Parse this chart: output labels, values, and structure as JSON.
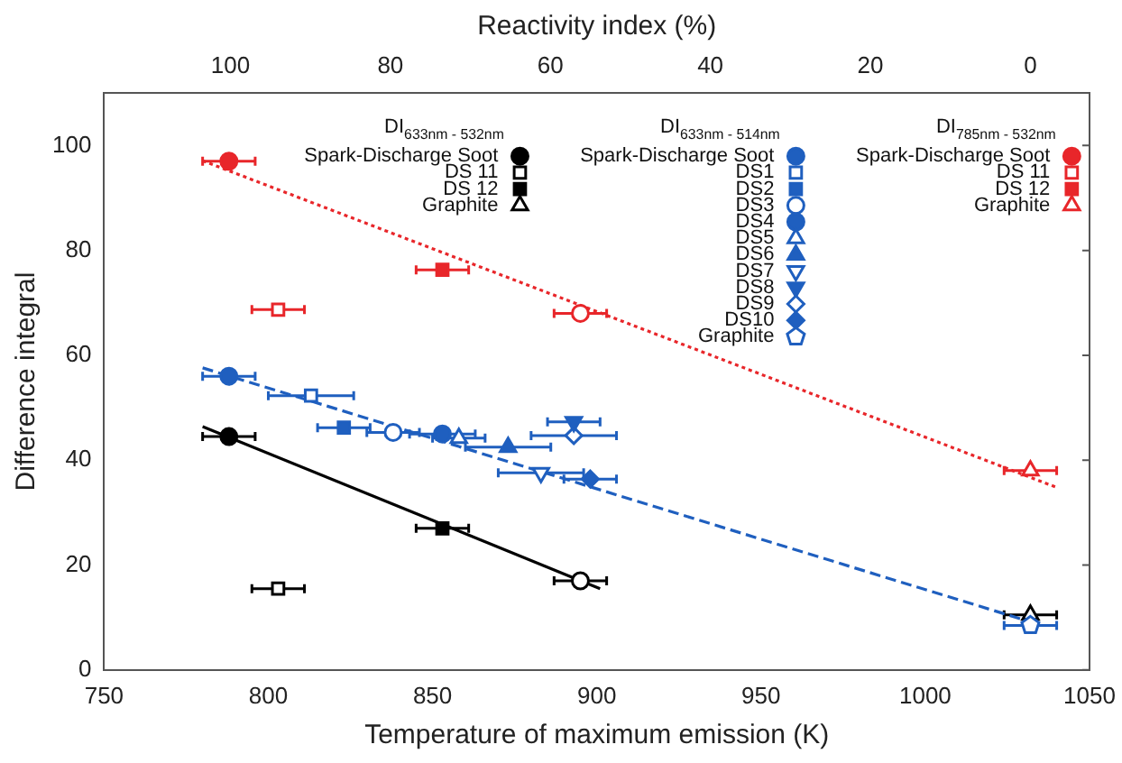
{
  "chart_data": {
    "type": "scatter",
    "xlabel": "Temperature of maximum emission (K)",
    "ylabel": "Difference integral",
    "x2label": "Reactivity index (%)",
    "xlim": [
      750,
      1050
    ],
    "xticks": [
      750,
      800,
      850,
      900,
      950,
      1000,
      1050
    ],
    "ylim": [
      0,
      110
    ],
    "yticks": [
      0,
      20,
      40,
      60,
      80,
      100
    ],
    "x2lim": [
      115.8,
      -7.4
    ],
    "x2ticks": [
      100,
      80,
      60,
      40,
      20,
      0
    ],
    "grid": false,
    "legend": "top",
    "annotations": [
      "DI$_{633nm - 532nm}$",
      "DI$_{633nm - 514nm}$",
      "DI$_{785nm - 532nm}$"
    ],
    "series": [
      {
        "name": "Spark-Discharge Soot",
        "color": "#000000",
        "marker": "circle",
        "x": [
          788
        ],
        "values": [
          44.5
        ],
        "xerrors": [
          8
        ]
      },
      {
        "name": "DS 11",
        "color": "#000000",
        "marker": "square",
        "x": [
          803
        ],
        "values": [
          15.5
        ],
        "xerrors": [
          8
        ]
      },
      {
        "name": "DS 12",
        "color": "#000000",
        "marker": "square",
        "x": [
          853
        ],
        "values": [
          27
        ],
        "xerrors": [
          8
        ]
      },
      {
        "color": "#000000",
        "marker": "circle",
        "x": [
          895
        ],
        "values": [
          17
        ],
        "xerrors": [
          8
        ]
      },
      {
        "name": "Graphite",
        "color": "#000000",
        "marker": "triangle",
        "x": [
          1032
        ],
        "values": [
          10.5
        ],
        "xerrors": [
          8
        ]
      },
      {
        "name": "Spark-Discharge Soot",
        "color": "#1f5fbf",
        "marker": "circle",
        "x": [
          788
        ],
        "values": [
          56
        ],
        "xerrors": [
          8
        ]
      },
      {
        "name": "DS1",
        "color": "#1f5fbf",
        "marker": "square",
        "x": [
          813
        ],
        "values": [
          52.3
        ],
        "xerrors": [
          13
        ]
      },
      {
        "name": "DS2",
        "color": "#1f5fbf",
        "marker": "square",
        "x": [
          823
        ],
        "values": [
          46.2
        ],
        "xerrors": [
          8
        ]
      },
      {
        "name": "DS3",
        "color": "#1f5fbf",
        "marker": "circle",
        "x": [
          838
        ],
        "values": [
          45.3
        ],
        "xerrors": [
          8
        ]
      },
      {
        "name": "DS4",
        "color": "#1f5fbf",
        "marker": "circle",
        "x": [
          853
        ],
        "values": [
          45
        ],
        "xerrors": [
          10
        ]
      },
      {
        "name": "DS5",
        "color": "#1f5fbf",
        "marker": "triangle",
        "x": [
          858
        ],
        "values": [
          44.2
        ],
        "xerrors": [
          8
        ]
      },
      {
        "name": "DS6",
        "color": "#1f5fbf",
        "marker": "triangle",
        "x": [
          873
        ],
        "values": [
          42.5
        ],
        "xerrors": [
          13
        ]
      },
      {
        "name": "DS7",
        "color": "#1f5fbf",
        "marker": "triangle",
        "x": [
          883
        ],
        "values": [
          37.6
        ],
        "xerrors": [
          13
        ]
      },
      {
        "name": "DS8",
        "color": "#1f5fbf",
        "marker": "triangle",
        "x": [
          893
        ],
        "values": [
          47.3
        ],
        "xerrors": [
          8
        ]
      },
      {
        "name": "DS9",
        "color": "#1f5fbf",
        "marker": "diamond",
        "x": [
          893
        ],
        "values": [
          44.7
        ],
        "xerrors": [
          13
        ]
      },
      {
        "name": "DS10",
        "color": "#1f5fbf",
        "marker": "diamond",
        "x": [
          898
        ],
        "values": [
          36.4
        ],
        "xerrors": [
          8
        ]
      },
      {
        "name": "Graphite",
        "color": "#1f5fbf",
        "x": [
          1032
        ],
        "values": [
          8.5
        ],
        "xerrors": [
          8
        ]
      },
      {
        "name": "Spark-Discharge Soot",
        "color": "#e8262a",
        "marker": "circle",
        "x": [
          788
        ],
        "values": [
          97
        ],
        "xerrors": [
          8
        ]
      },
      {
        "name": "DS 11",
        "color": "#e8262a",
        "marker": "square",
        "x": [
          803
        ],
        "values": [
          68.7
        ],
        "xerrors": [
          8
        ]
      },
      {
        "name": "DS 12",
        "color": "#e8262a",
        "marker": "square",
        "x": [
          853
        ],
        "values": [
          76.3
        ],
        "xerrors": [
          8
        ]
      },
      {
        "color": "#e8262a",
        "marker": "circle",
        "x": [
          895
        ],
        "values": [
          68
        ],
        "xerrors": [
          8
        ]
      },
      {
        "name": "Graphite",
        "color": "#e8262a",
        "marker": "triangle",
        "x": [
          1032
        ],
        "values": [
          38
        ],
        "xerrors": [
          8
        ]
      },
      {
        "type": "line",
        "color": "#000000",
        "line_style": "solid",
        "marker": "none",
        "x": [
          780,
          901
        ],
        "values": [
          46.4,
          15.5
        ]
      },
      {
        "type": "line",
        "color": "#1f5fbf",
        "line_style": "dashed",
        "marker": "none",
        "x": [
          780,
          1035
        ],
        "values": [
          57.6,
          8.6
        ]
      },
      {
        "type": "line",
        "color": "#e8262a",
        "line_style": "dotted",
        "marker": "none",
        "x": [
          780,
          1040
        ],
        "values": [
          97.1,
          34.8
        ]
      }
    ]
  }
}
